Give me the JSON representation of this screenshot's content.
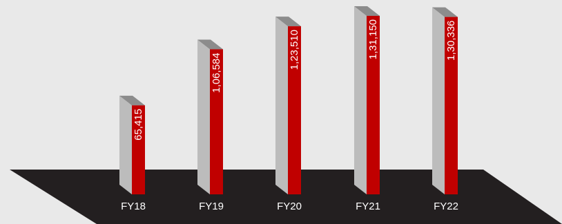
{
  "chart_data": {
    "type": "bar",
    "categories": [
      "FY18",
      "FY19",
      "FY20",
      "FY21",
      "FY22"
    ],
    "value_labels": [
      "65,415",
      "1,06,584",
      "1,23,510",
      "1,31,150",
      "1,30,336"
    ],
    "values": [
      65415,
      106584,
      123510,
      131150,
      130336
    ],
    "title": "",
    "xlabel": "",
    "ylabel": "",
    "ylim": [
      0,
      131150
    ],
    "grid": false,
    "legend": "none"
  },
  "colors": {
    "background": "#e9e9e9",
    "floor": "#231f20",
    "bar_front": "#c00000",
    "bar_side": "#bcbcbc",
    "bar_top": "#8c8c8c",
    "label_text": "#ffffff"
  }
}
